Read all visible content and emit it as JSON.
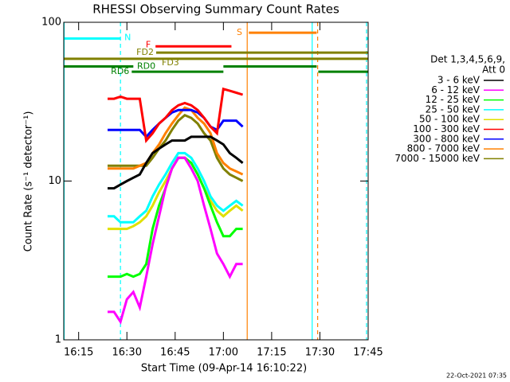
{
  "chart_data": {
    "type": "line",
    "title": "RHESSI Observing Summary Count Rates",
    "xlabel": "Start Time (09-Apr-14 16:10:22)",
    "ylabel": "Count Rate (s⁻¹ detector⁻¹)",
    "footer": "22-Oct-2021 07:35",
    "legend_header": [
      "Det 1,3,4,5,6,9,",
      "Att 0"
    ],
    "log_y": true,
    "xlim": [
      10.37,
      105
    ],
    "ylim": [
      1,
      100
    ],
    "xticks": [
      {
        "value": 15,
        "label": "16:15"
      },
      {
        "value": 30,
        "label": "16:30"
      },
      {
        "value": 45,
        "label": "16:45"
      },
      {
        "value": 60,
        "label": "17:00"
      },
      {
        "value": 75,
        "label": "17:15"
      },
      {
        "value": 90,
        "label": "17:30"
      },
      {
        "value": 105,
        "label": "17:45"
      }
    ],
    "yticks": [
      1,
      10,
      100
    ],
    "x": [
      24,
      26,
      28,
      30,
      32,
      34,
      36,
      38,
      40,
      42,
      44,
      46,
      48,
      50,
      52,
      54,
      56,
      58,
      60,
      62,
      64,
      66
    ],
    "series": [
      {
        "name": "3 - 6 keV",
        "color": "#000000",
        "values": [
          9,
          9,
          9.5,
          10,
          10.5,
          11,
          13,
          15,
          16,
          17,
          18,
          18,
          18,
          19,
          19,
          19,
          19,
          18,
          17,
          15,
          14,
          13
        ]
      },
      {
        "name": "6 - 12 keV",
        "color": "#ff00ff",
        "values": [
          1.5,
          1.5,
          1.3,
          1.8,
          2,
          1.6,
          2.5,
          4,
          6,
          9,
          12,
          14,
          14,
          12,
          10,
          7,
          5,
          3.5,
          3,
          2.5,
          3,
          3
        ]
      },
      {
        "name": "12 - 25 keV",
        "color": "#00ff00",
        "values": [
          2.5,
          2.5,
          2.5,
          2.6,
          2.5,
          2.6,
          3,
          5,
          7,
          9,
          12,
          14,
          14,
          13,
          11,
          9,
          7,
          5.5,
          4.5,
          4.5,
          5,
          5
        ]
      },
      {
        "name": "25 - 50 keV",
        "color": "#00ffff",
        "values": [
          6,
          6,
          5.5,
          5.5,
          5.5,
          6,
          6.5,
          8,
          9.5,
          11,
          13,
          15,
          15,
          14,
          12,
          10,
          8,
          7,
          6.5,
          7,
          7.5,
          7
        ]
      },
      {
        "name": "50 - 100 keV",
        "color": "#e0e000",
        "values": [
          5,
          5,
          5,
          5,
          5.2,
          5.5,
          6,
          7,
          8.5,
          10,
          12,
          14,
          14,
          13,
          11,
          9,
          7.5,
          6.5,
          6,
          6.5,
          7,
          6.5
        ]
      },
      {
        "name": "100 - 300 keV",
        "color": "#ff0000",
        "values": [
          33,
          33,
          34,
          33,
          33,
          33,
          18,
          20,
          23,
          25,
          28,
          30,
          31,
          30,
          28,
          25,
          22,
          20,
          38,
          37,
          36,
          35
        ]
      },
      {
        "name": "300 - 800 keV",
        "color": "#0000ff",
        "values": [
          21,
          21,
          21,
          21,
          21,
          21,
          19,
          21,
          23,
          25,
          27,
          28,
          28,
          28,
          27,
          25,
          22,
          21,
          24,
          24,
          24,
          22
        ]
      },
      {
        "name": "800 - 7000 keV",
        "color": "#ff8000",
        "values": [
          12,
          12,
          12,
          12,
          12,
          12.5,
          13,
          15,
          17,
          20,
          23,
          26,
          29,
          28,
          25,
          23,
          20,
          15,
          13,
          12,
          11.5,
          11
        ]
      },
      {
        "name": "7000 - 15000 keV",
        "color": "#808000",
        "values": [
          12.5,
          12.5,
          12.5,
          12.5,
          12.5,
          12.5,
          12.5,
          14,
          16,
          18,
          21,
          24,
          26,
          25,
          23,
          20,
          18,
          14,
          12,
          11,
          10.5,
          10
        ]
      }
    ],
    "flags": [
      {
        "label": "N",
        "color": "#00ffff",
        "y": 79,
        "segments": [
          [
            10.37,
            28
          ],
          [
            104.5,
            105
          ]
        ]
      },
      {
        "label": "S",
        "color": "#ff8000",
        "y": 86,
        "segments": [
          [
            67.9,
            89
          ]
        ]
      },
      {
        "label": "F",
        "color": "#ff0000",
        "y": 70.5,
        "segments": [
          [
            38.9,
            62.5
          ]
        ]
      },
      {
        "label": "FD2",
        "color": "#808000",
        "y": 64.4,
        "segments": [
          [
            39.1,
            105
          ]
        ]
      },
      {
        "label": "FD3",
        "color": "#808000",
        "y": 58.9,
        "segments": [
          [
            10.37,
            105
          ]
        ]
      },
      {
        "label": "RD0",
        "color": "#008000",
        "y": 52.7,
        "segments": [
          [
            10.37,
            32
          ],
          [
            60,
            89
          ]
        ]
      },
      {
        "label": "RD6",
        "color": "#008000",
        "y": 48.8,
        "segments": [
          [
            31.5,
            60
          ],
          [
            89.5,
            105
          ]
        ]
      }
    ],
    "vlines": [
      {
        "x": 10.5,
        "color": "#00ffff",
        "dashed": false
      },
      {
        "x": 87.6,
        "color": "#00ffff",
        "dashed": false
      },
      {
        "x": 28,
        "color": "#00ffff",
        "dashed": true
      },
      {
        "x": 104.5,
        "color": "#00ffff",
        "dashed": true
      },
      {
        "x": 67.4,
        "color": "#ff8000",
        "dashed": false
      },
      {
        "x": 89.3,
        "color": "#ff8000",
        "dashed": true
      }
    ]
  }
}
